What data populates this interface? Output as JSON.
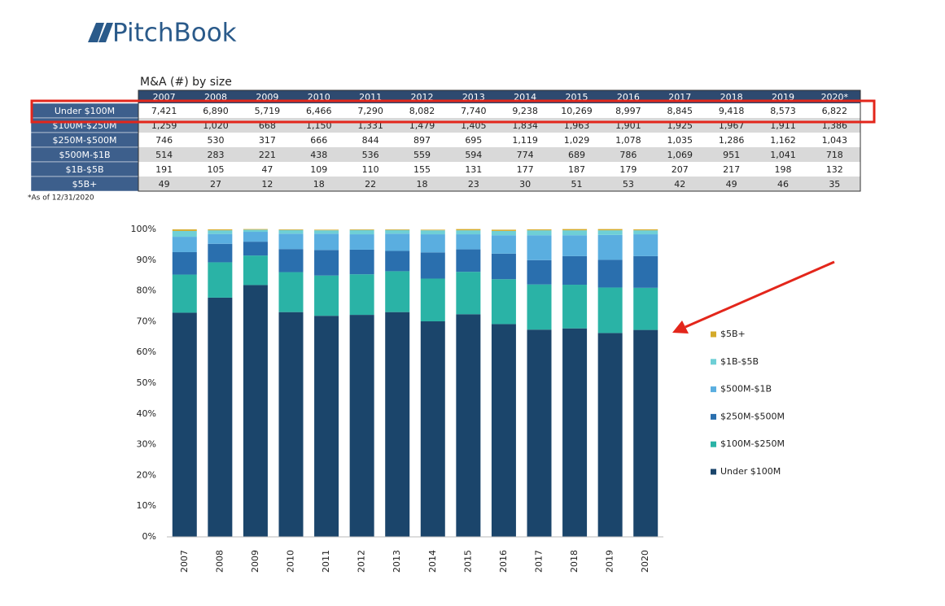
{
  "header": {
    "logo": "PitchBook"
  },
  "table": {
    "title": "M&A (#) by size",
    "columns": [
      "2007",
      "2008",
      "2009",
      "2010",
      "2011",
      "2012",
      "2013",
      "2014",
      "2015",
      "2016",
      "2017",
      "2018",
      "2019",
      "2020*"
    ],
    "rows": [
      {
        "label": "Under $100M",
        "values": [
          "7,421",
          "6,890",
          "5,719",
          "6,466",
          "7,290",
          "8,082",
          "7,740",
          "9,238",
          "10,269",
          "8,997",
          "8,845",
          "9,418",
          "8,573",
          "6,822"
        ]
      },
      {
        "label": "$100M-$250M",
        "values": [
          "1,259",
          "1,020",
          "668",
          "1,150",
          "1,331",
          "1,479",
          "1,405",
          "1,834",
          "1,963",
          "1,901",
          "1,925",
          "1,967",
          "1,911",
          "1,386"
        ]
      },
      {
        "label": "$250M-$500M",
        "values": [
          "746",
          "530",
          "317",
          "666",
          "844",
          "897",
          "695",
          "1,119",
          "1,029",
          "1,078",
          "1,035",
          "1,286",
          "1,162",
          "1,043"
        ]
      },
      {
        "label": "$500M-$1B",
        "values": [
          "514",
          "283",
          "221",
          "438",
          "536",
          "559",
          "594",
          "774",
          "689",
          "786",
          "1,069",
          "951",
          "1,041",
          "718"
        ]
      },
      {
        "label": "$1B-$5B",
        "values": [
          "191",
          "105",
          "47",
          "109",
          "110",
          "155",
          "131",
          "177",
          "187",
          "179",
          "207",
          "217",
          "198",
          "132"
        ]
      },
      {
        "label": "$5B+",
        "values": [
          "49",
          "27",
          "12",
          "18",
          "22",
          "18",
          "23",
          "30",
          "51",
          "53",
          "42",
          "49",
          "46",
          "35"
        ]
      }
    ],
    "footnote": "*As of 12/31/2020"
  },
  "chart_data": {
    "type": "stacked_bar",
    "categories": [
      "2007",
      "2008",
      "2009",
      "2010",
      "2011",
      "2012",
      "2013",
      "2014",
      "2015",
      "2016",
      "2017",
      "2018",
      "2019",
      "2020"
    ],
    "series": [
      {
        "name": "Under $100M",
        "color": "#1b456b",
        "values": [
          72.9,
          77.8,
          81.9,
          73.1,
          71.9,
          72.2,
          73.1,
          70.1,
          72.4,
          69.2,
          67.4,
          67.8,
          66.3,
          67.3
        ]
      },
      {
        "name": "$100M-$250M",
        "color": "#2ab3a6",
        "values": [
          12.4,
          11.5,
          9.6,
          13.0,
          13.1,
          13.2,
          13.3,
          13.9,
          13.8,
          14.6,
          14.7,
          14.2,
          14.8,
          13.7
        ]
      },
      {
        "name": "$250M-$500M",
        "color": "#2a6fae",
        "values": [
          7.3,
          6.0,
          4.5,
          7.5,
          8.3,
          8.0,
          6.6,
          8.5,
          7.3,
          8.3,
          7.9,
          9.3,
          9.0,
          10.3
        ]
      },
      {
        "name": "$500M-$1B",
        "color": "#5aaee0",
        "values": [
          5.0,
          3.2,
          3.2,
          5.0,
          5.3,
          5.0,
          5.6,
          5.9,
          4.9,
          6.0,
          8.1,
          6.8,
          8.1,
          7.1
        ]
      },
      {
        "name": "$1B-$5B",
        "color": "#6ecfd6",
        "values": [
          1.9,
          1.2,
          0.7,
          1.2,
          1.1,
          1.4,
          1.2,
          1.3,
          1.3,
          1.4,
          1.6,
          1.6,
          1.5,
          1.3
        ]
      },
      {
        "name": "$5B+",
        "color": "#d4aa2a",
        "values": [
          0.5,
          0.3,
          0.2,
          0.2,
          0.2,
          0.2,
          0.2,
          0.2,
          0.4,
          0.4,
          0.3,
          0.4,
          0.4,
          0.3
        ]
      }
    ],
    "ylim": [
      0,
      100
    ],
    "yticks": [
      {
        "value": 0,
        "label": "0%"
      },
      {
        "value": 10,
        "label": "10%"
      },
      {
        "value": 20,
        "label": "20%"
      },
      {
        "value": 30,
        "label": "30%"
      },
      {
        "value": 40,
        "label": "40%"
      },
      {
        "value": 50,
        "label": "50%"
      },
      {
        "value": 60,
        "label": "60%"
      },
      {
        "value": 70,
        "label": "70%"
      },
      {
        "value": 80,
        "label": "80%"
      },
      {
        "value": 90,
        "label": "90%"
      },
      {
        "value": 100,
        "label": "100%"
      }
    ],
    "legend": "right"
  }
}
